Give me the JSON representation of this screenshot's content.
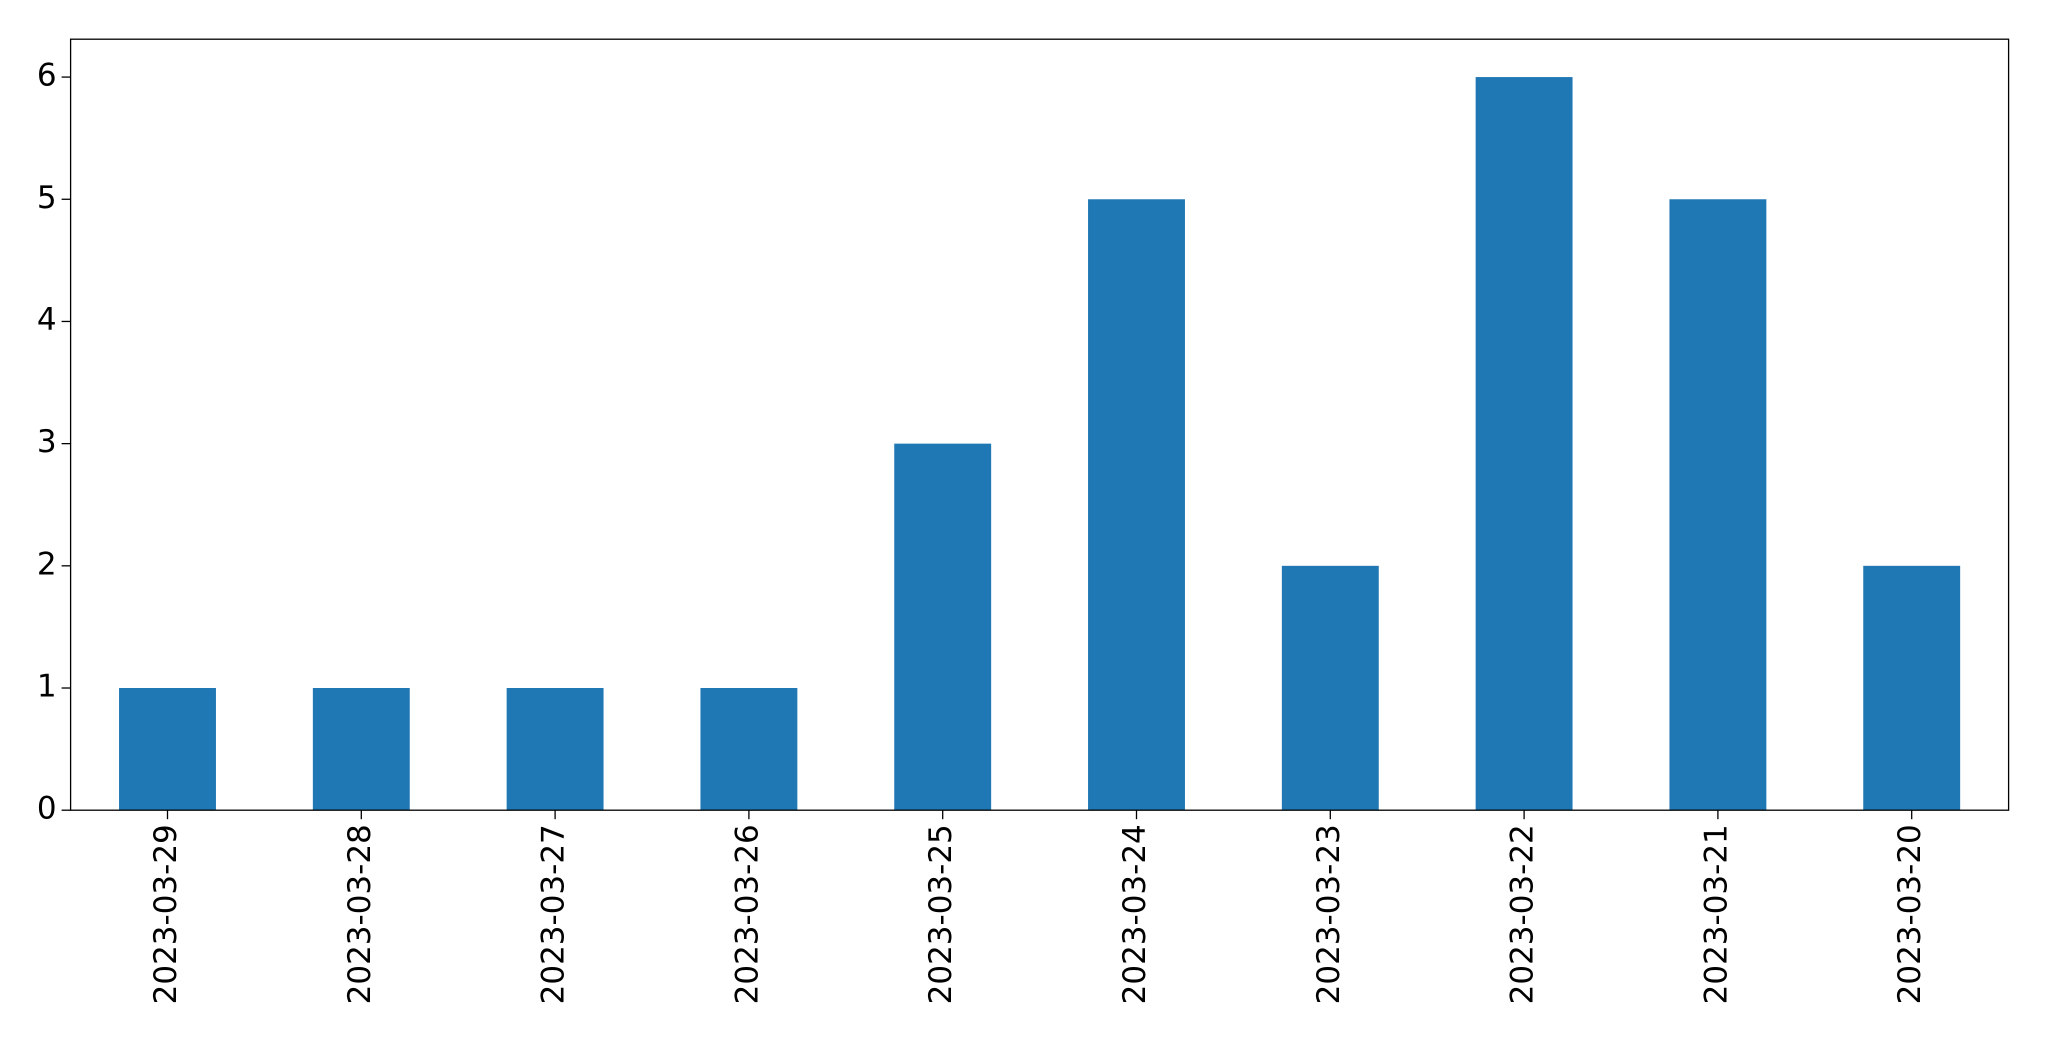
{
  "chart_data": {
    "type": "bar",
    "categories": [
      "2023-03-29",
      "2023-03-28",
      "2023-03-27",
      "2023-03-26",
      "2023-03-25",
      "2023-03-24",
      "2023-03-23",
      "2023-03-22",
      "2023-03-21",
      "2023-03-20"
    ],
    "values": [
      1,
      1,
      1,
      1,
      3,
      5,
      2,
      6,
      5,
      2
    ],
    "color": "#1f77b4",
    "ylim": [
      0,
      6.31
    ],
    "yticks": [
      0,
      1,
      2,
      3,
      4,
      5,
      6
    ],
    "grid": false
  }
}
